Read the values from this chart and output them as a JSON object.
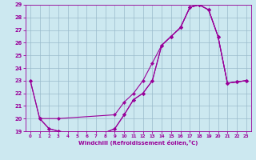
{
  "xlabel": "Windchill (Refroidissement éolien,°C)",
  "xlim": [
    -0.5,
    23.5
  ],
  "ylim": [
    19,
    29
  ],
  "yticks": [
    19,
    20,
    21,
    22,
    23,
    24,
    25,
    26,
    27,
    28,
    29
  ],
  "xticks": [
    0,
    1,
    2,
    3,
    4,
    5,
    6,
    7,
    8,
    9,
    10,
    11,
    12,
    13,
    14,
    15,
    16,
    17,
    18,
    19,
    20,
    21,
    22,
    23
  ],
  "line_color": "#990099",
  "bg_color": "#cce8f0",
  "grid_color": "#99bbcc",
  "curve1_x": [
    0,
    1,
    3,
    9,
    10,
    11,
    12,
    13,
    14,
    15,
    16,
    17,
    18,
    19,
    20,
    21,
    22,
    23
  ],
  "curve1_y": [
    23,
    20,
    20,
    20.3,
    21.3,
    22.0,
    23.0,
    24.4,
    25.8,
    26.5,
    27.2,
    28.8,
    29.0,
    28.6,
    26.5,
    22.8,
    22.9,
    23.0
  ],
  "curve2_x": [
    0,
    1,
    2,
    3,
    4,
    5,
    6,
    7,
    8,
    9,
    10,
    11,
    12,
    13,
    14,
    15,
    16,
    17,
    18,
    19,
    20,
    21,
    22,
    23
  ],
  "curve2_y": [
    23,
    20,
    19.2,
    19.0,
    18.9,
    18.9,
    18.85,
    18.85,
    18.9,
    19.2,
    20.3,
    21.5,
    22.0,
    23.0,
    25.8,
    26.5,
    27.2,
    28.8,
    29.0,
    28.6,
    26.5,
    22.8,
    22.9,
    23.0
  ],
  "curve3_x": [
    1,
    2,
    3,
    4,
    5,
    6,
    7,
    8,
    9,
    10,
    11,
    12,
    13,
    14,
    15,
    16,
    17,
    18,
    19,
    20,
    21,
    22,
    23
  ],
  "curve3_y": [
    20,
    19.2,
    19.0,
    18.9,
    18.9,
    18.85,
    18.85,
    18.9,
    19.2,
    20.3,
    21.5,
    22.0,
    23.0,
    25.8,
    26.5,
    27.2,
    28.8,
    29.0,
    28.6,
    26.5,
    22.8,
    22.9,
    23.0
  ]
}
